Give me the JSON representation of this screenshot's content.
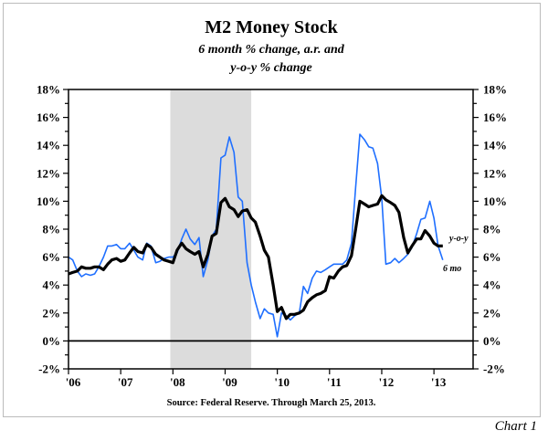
{
  "chart_data": {
    "type": "line",
    "title": "M2 Money Stock",
    "subtitle_lines": [
      "6 month % change, a.r. and",
      "y-o-y % change"
    ],
    "source": "Source: Federal Reserve.  Through March 25, 2013.",
    "chart_label": "Chart 1",
    "xlabel": "",
    "ylabel": "",
    "xlim": [
      2006,
      2013.75
    ],
    "ylim": [
      -2,
      18
    ],
    "x_ticks": [
      2006,
      2007,
      2008,
      2009,
      2010,
      2011,
      2012,
      2013
    ],
    "x_tick_labels": [
      "'06",
      "'07",
      "'08",
      "'09",
      "'10",
      "'11",
      "'12",
      "'13"
    ],
    "y_ticks": [
      -2,
      0,
      2,
      4,
      6,
      8,
      10,
      12,
      14,
      16,
      18
    ],
    "y_tick_labels": [
      "-2%",
      "0%",
      "2%",
      "4%",
      "6%",
      "8%",
      "10%",
      "12%",
      "14%",
      "16%",
      "18%"
    ],
    "recession_shading": [
      2007.95,
      2009.5
    ],
    "colors": {
      "six_month": "#1f6fff",
      "yoy": "#000000",
      "recession": "#dcdcdc"
    },
    "series": [
      {
        "name": "6 mo",
        "x": [
          2006.0,
          2006.08,
          2006.17,
          2006.25,
          2006.33,
          2006.42,
          2006.5,
          2006.58,
          2006.67,
          2006.75,
          2006.83,
          2006.92,
          2007.0,
          2007.08,
          2007.17,
          2007.25,
          2007.33,
          2007.42,
          2007.5,
          2007.58,
          2007.67,
          2007.75,
          2007.83,
          2007.92,
          2008.0,
          2008.08,
          2008.17,
          2008.25,
          2008.33,
          2008.42,
          2008.5,
          2008.58,
          2008.67,
          2008.75,
          2008.83,
          2008.92,
          2009.0,
          2009.08,
          2009.17,
          2009.25,
          2009.33,
          2009.42,
          2009.5,
          2009.58,
          2009.67,
          2009.75,
          2009.83,
          2009.92,
          2010.0,
          2010.08,
          2010.17,
          2010.25,
          2010.33,
          2010.42,
          2010.5,
          2010.58,
          2010.67,
          2010.75,
          2010.83,
          2010.92,
          2011.0,
          2011.08,
          2011.17,
          2011.25,
          2011.33,
          2011.42,
          2011.5,
          2011.58,
          2011.67,
          2011.75,
          2011.83,
          2011.92,
          2012.0,
          2012.08,
          2012.17,
          2012.25,
          2012.33,
          2012.42,
          2012.5,
          2012.58,
          2012.67,
          2012.75,
          2012.83,
          2012.92,
          2013.0,
          2013.08,
          2013.17
        ],
        "values": [
          6.0,
          5.8,
          5.0,
          4.6,
          4.8,
          4.7,
          4.8,
          5.3,
          6.0,
          6.8,
          6.8,
          6.9,
          6.6,
          6.6,
          7.0,
          6.5,
          6.0,
          5.8,
          7.0,
          6.8,
          5.6,
          5.7,
          5.9,
          6.0,
          6.0,
          6.3,
          7.3,
          8.0,
          7.3,
          6.9,
          7.4,
          4.6,
          5.8,
          7.5,
          8.0,
          13.1,
          13.3,
          14.6,
          13.5,
          10.3,
          10.0,
          5.6,
          4.0,
          2.8,
          1.6,
          2.3,
          2.0,
          1.9,
          0.3,
          2.0,
          1.8,
          1.5,
          1.8,
          2.0,
          3.9,
          3.4,
          4.5,
          5.0,
          4.9,
          5.1,
          5.3,
          5.5,
          5.5,
          5.5,
          5.8,
          7.0,
          11.0,
          14.8,
          14.4,
          13.9,
          13.8,
          12.7,
          10.2,
          5.5,
          5.6,
          5.9,
          5.6,
          5.9,
          6.2,
          6.7,
          7.7,
          8.7,
          8.8,
          10.0,
          8.8,
          6.8,
          5.8
        ]
      },
      {
        "name": "y-o-y",
        "x": [
          2006.0,
          2006.08,
          2006.17,
          2006.25,
          2006.33,
          2006.42,
          2006.5,
          2006.58,
          2006.67,
          2006.75,
          2006.83,
          2006.92,
          2007.0,
          2007.08,
          2007.17,
          2007.25,
          2007.33,
          2007.42,
          2007.5,
          2007.58,
          2007.67,
          2007.75,
          2007.83,
          2007.92,
          2008.0,
          2008.08,
          2008.17,
          2008.25,
          2008.33,
          2008.42,
          2008.5,
          2008.58,
          2008.67,
          2008.75,
          2008.83,
          2008.92,
          2009.0,
          2009.08,
          2009.17,
          2009.25,
          2009.33,
          2009.42,
          2009.5,
          2009.58,
          2009.67,
          2009.75,
          2009.83,
          2009.92,
          2010.0,
          2010.08,
          2010.17,
          2010.25,
          2010.33,
          2010.42,
          2010.5,
          2010.58,
          2010.67,
          2010.75,
          2010.83,
          2010.92,
          2011.0,
          2011.08,
          2011.17,
          2011.25,
          2011.33,
          2011.42,
          2011.5,
          2011.58,
          2011.67,
          2011.75,
          2011.83,
          2011.92,
          2012.0,
          2012.08,
          2012.17,
          2012.25,
          2012.33,
          2012.42,
          2012.5,
          2012.58,
          2012.67,
          2012.75,
          2012.83,
          2012.92,
          2013.0,
          2013.08,
          2013.17
        ],
        "values": [
          4.8,
          4.9,
          5.0,
          5.3,
          5.2,
          5.2,
          5.3,
          5.3,
          5.1,
          5.5,
          5.8,
          5.9,
          5.7,
          5.8,
          6.3,
          6.7,
          6.4,
          6.3,
          6.9,
          6.7,
          6.2,
          6.0,
          5.8,
          5.7,
          5.6,
          6.5,
          7.0,
          6.6,
          6.4,
          6.2,
          6.4,
          5.3,
          6.2,
          7.5,
          7.7,
          9.9,
          10.2,
          9.6,
          9.4,
          8.9,
          9.3,
          9.4,
          8.8,
          8.5,
          7.5,
          6.5,
          6.0,
          4.0,
          2.1,
          2.4,
          1.6,
          1.9,
          1.9,
          2.0,
          2.2,
          2.8,
          3.1,
          3.3,
          3.4,
          3.6,
          4.6,
          4.5,
          5.0,
          5.3,
          5.4,
          6.1,
          8.0,
          10.0,
          9.8,
          9.6,
          9.7,
          9.8,
          10.4,
          10.1,
          9.9,
          9.7,
          9.2,
          7.4,
          6.3,
          6.8,
          7.3,
          7.3,
          7.9,
          7.5,
          7.0,
          6.8,
          6.8
        ]
      }
    ]
  }
}
